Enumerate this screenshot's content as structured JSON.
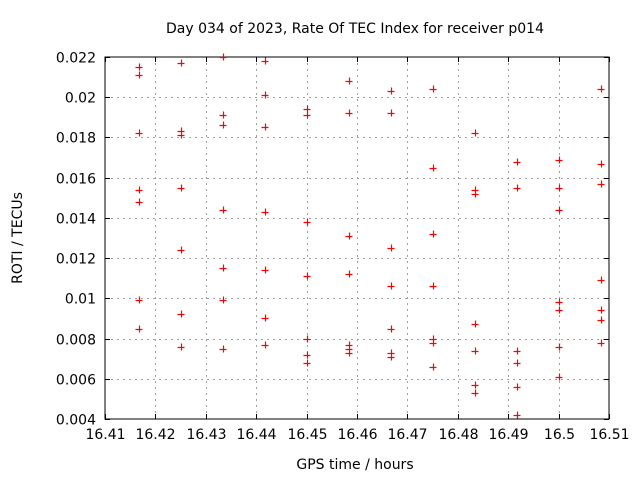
{
  "chart_data": {
    "type": "scatter",
    "title": "Day 034 of 2023, Rate Of TEC Index for receiver p014",
    "xlabel": "GPS time / hours",
    "ylabel": "ROTI / TECUs",
    "xlim": [
      16.41,
      16.51
    ],
    "ylim": [
      0.004,
      0.022
    ],
    "grid": true,
    "legend": "none",
    "xticks": {
      "values": [
        16.41,
        16.42,
        16.43,
        16.44,
        16.45,
        16.46,
        16.47,
        16.48,
        16.49,
        16.5,
        16.51
      ],
      "labels": [
        "16.41",
        "16.42",
        "16.43",
        "16.44",
        "16.45",
        "16.46",
        "16.47",
        "16.48",
        "16.49",
        "16.5",
        "16.51"
      ]
    },
    "yticks": {
      "values": [
        0.004,
        0.006,
        0.008,
        0.01,
        0.012,
        0.014,
        0.016,
        0.018,
        0.02,
        0.022
      ],
      "labels": [
        "0.004",
        "0.006",
        "0.008",
        "0.01",
        "0.012",
        "0.014",
        "0.016",
        "0.018",
        "0.02",
        "0.022"
      ]
    },
    "marker": {
      "shape": "plus",
      "color": "#ff0000",
      "size": 7
    },
    "grid_color": "#a0a0a0",
    "border_color": "#000000",
    "epochs": [
      {
        "t": 16.41667,
        "roti": [
          0.0215,
          0.0211,
          0.0182,
          0.0154,
          0.0148,
          0.0099,
          0.0085
        ]
      },
      {
        "t": 16.425,
        "roti": [
          0.0217,
          0.0183,
          0.0181,
          0.0155,
          0.0124,
          0.0092,
          0.0076
        ]
      },
      {
        "t": 16.43333,
        "roti": [
          0.022,
          0.0191,
          0.0186,
          0.0144,
          0.0115,
          0.0099,
          0.0075
        ]
      },
      {
        "t": 16.44167,
        "roti": [
          0.0218,
          0.0201,
          0.0185,
          0.0143,
          0.0114,
          0.009,
          0.0077
        ]
      },
      {
        "t": 16.45,
        "roti": [
          0.0194,
          0.0191,
          0.0138,
          0.0111,
          0.008,
          0.0072,
          0.0068
        ]
      },
      {
        "t": 16.45833,
        "roti": [
          0.0208,
          0.0192,
          0.0131,
          0.0112,
          0.0077,
          0.0075,
          0.0073
        ]
      },
      {
        "t": 16.46667,
        "roti": [
          0.0203,
          0.0192,
          0.0125,
          0.0106,
          0.0085,
          0.0073,
          0.0071
        ]
      },
      {
        "t": 16.475,
        "roti": [
          0.0204,
          0.0165,
          0.0132,
          0.0106,
          0.008,
          0.0078,
          0.0066
        ]
      },
      {
        "t": 16.48333,
        "roti": [
          0.0182,
          0.0154,
          0.0152,
          0.0087,
          0.0074,
          0.0057,
          0.0053
        ]
      },
      {
        "t": 16.49167,
        "roti": [
          0.0168,
          0.0155,
          0.0074,
          0.0068,
          0.0056,
          0.0042
        ]
      },
      {
        "t": 16.5,
        "roti": [
          0.0169,
          0.0155,
          0.0144,
          0.0098,
          0.0094,
          0.0076,
          0.0061
        ]
      },
      {
        "t": 16.50833,
        "roti": [
          0.0204,
          0.0167,
          0.0157,
          0.0109,
          0.0094,
          0.0089,
          0.0078
        ]
      }
    ]
  }
}
